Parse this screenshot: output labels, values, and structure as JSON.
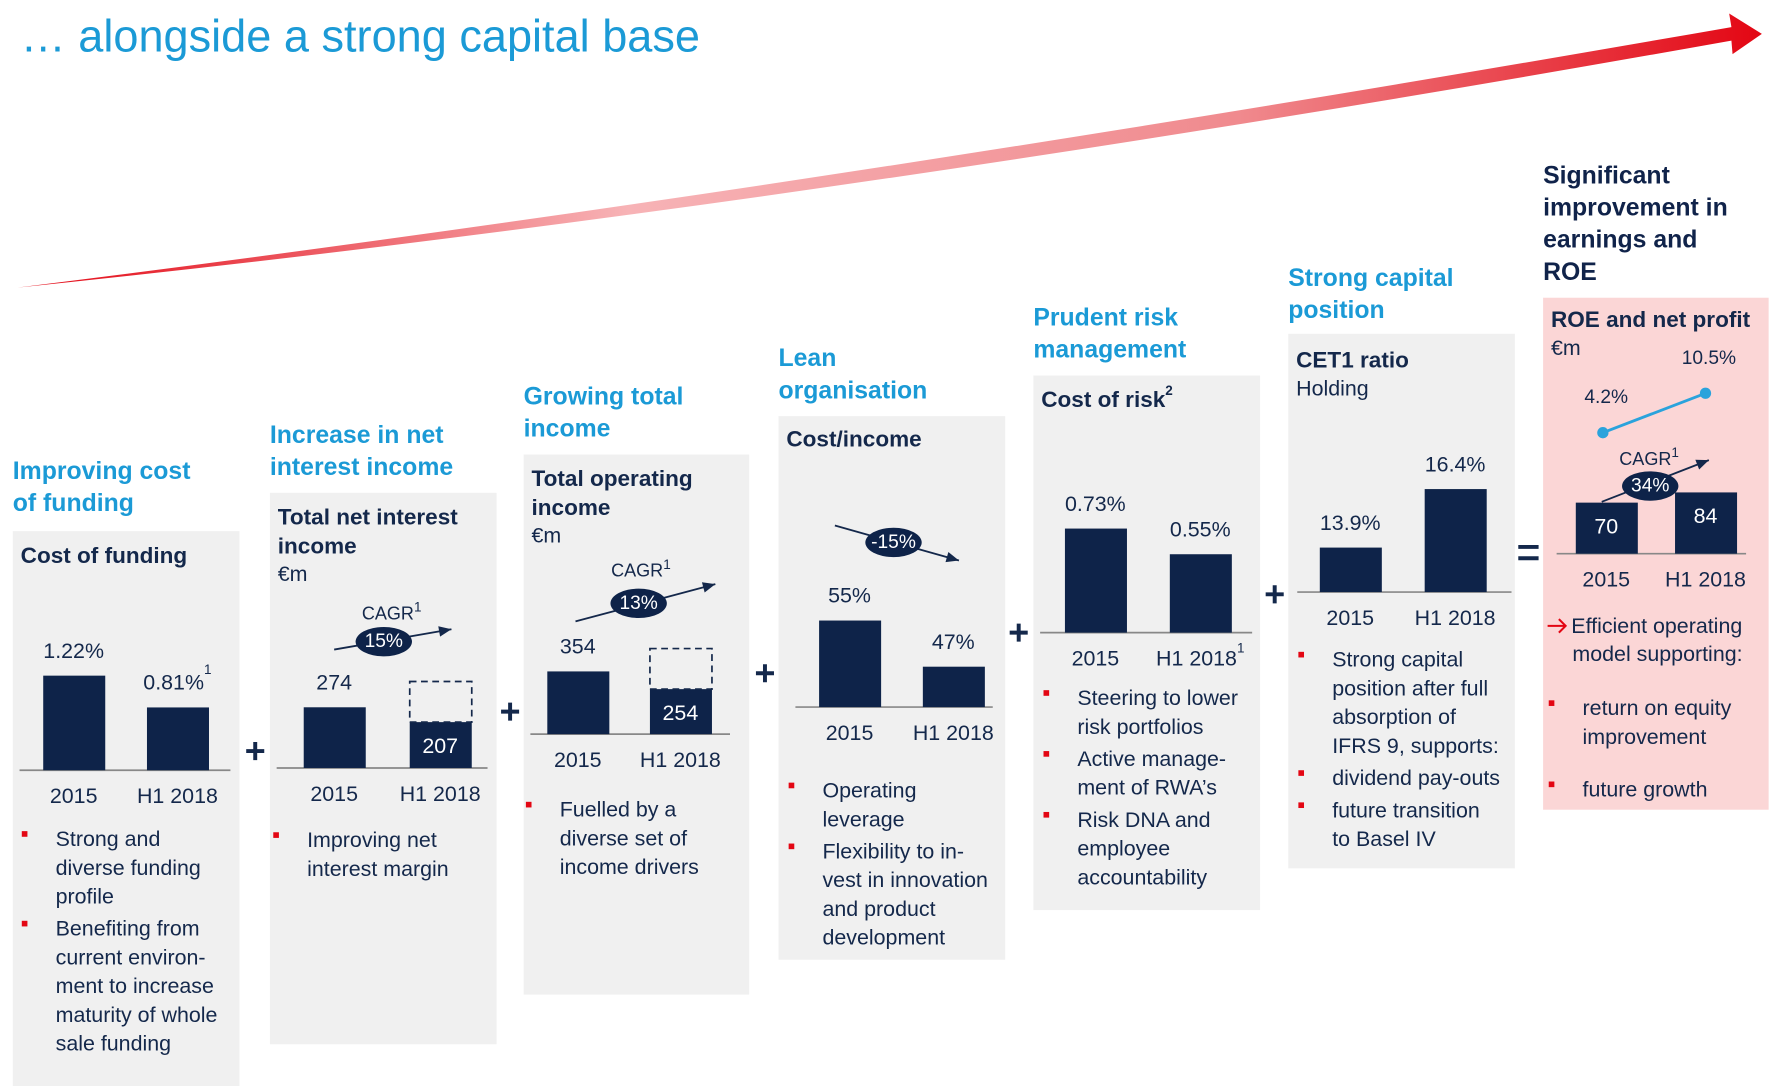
{
  "title": "… alongside a strong capital base",
  "panels": [
    {
      "heading": [
        "Improving cost",
        "of funding"
      ],
      "chart_title": [
        "Cost of funding"
      ],
      "categories": [
        "2015",
        "H1 2018"
      ],
      "values": [
        1.22,
        0.81
      ],
      "value_labels": [
        "1.22%",
        "0.81%"
      ],
      "value_notes": [
        null,
        "1"
      ],
      "ylim": [
        0,
        1.6
      ],
      "bullets": [
        [
          "Strong and",
          "diverse funding",
          "profile"
        ],
        [
          "Benefiting from",
          "current environ-",
          "ment to increase",
          "maturity of whole",
          "sale funding"
        ]
      ]
    },
    {
      "heading": [
        "Increase in net",
        "interest income"
      ],
      "chart_title": [
        "Total net interest",
        "income"
      ],
      "unit": "€m",
      "categories": [
        "2015",
        "H1 2018"
      ],
      "values": [
        274,
        207
      ],
      "ylim": [
        0,
        560
      ],
      "cagr": {
        "label": "CAGR",
        "note": "1",
        "value": 15,
        "value_label": "15%"
      },
      "bullets": [
        [
          "Improving net",
          "interest margin"
        ]
      ]
    },
    {
      "heading": [
        "Growing total",
        "income"
      ],
      "chart_title": [
        "Total operating",
        "income"
      ],
      "unit": "€m",
      "categories": [
        "2015",
        "H1 2018"
      ],
      "values": [
        354,
        254
      ],
      "ylim": [
        0,
        700
      ],
      "cagr": {
        "label": "CAGR",
        "note": "1",
        "value": 13,
        "value_label": "13%"
      },
      "bullets": [
        [
          "Fuelled by a",
          "diverse set of",
          "income drivers"
        ]
      ]
    },
    {
      "heading": [
        "Lean",
        "organisation"
      ],
      "chart_title": [
        "Cost/income"
      ],
      "categories": [
        "2015",
        "H1 2018"
      ],
      "values": [
        55,
        47
      ],
      "value_labels": [
        "55%",
        "47%"
      ],
      "ylim": [
        40,
        61.5
      ],
      "change": {
        "value": -15,
        "value_label": "-15%"
      },
      "bullets": [
        [
          "Operating",
          "leverage"
        ],
        [
          "Flexibility to in-",
          "vest in innovation",
          "and product",
          "development"
        ]
      ]
    },
    {
      "heading": [
        "Prudent risk",
        "management"
      ],
      "chart_title": [
        "Cost of risk"
      ],
      "chart_title_note": "2",
      "categories": [
        "2015",
        "H1 2018"
      ],
      "category_notes": [
        null,
        "1"
      ],
      "values": [
        0.73,
        0.55
      ],
      "value_labels": [
        "0.73%",
        "0.55%"
      ],
      "ylim": [
        0,
        0.87
      ],
      "bullets": [
        [
          "Steering to lower",
          "risk portfolios"
        ],
        [
          "Active manage-",
          "ment of RWA’s"
        ],
        [
          "Risk DNA and",
          "employee",
          "accountability"
        ]
      ]
    },
    {
      "heading": [
        "Strong capital",
        "position"
      ],
      "chart_title": [
        "CET1 ratio"
      ],
      "subtitle": "Holding",
      "categories": [
        "2015",
        "H1 2018"
      ],
      "values": [
        13.9,
        16.4
      ],
      "value_labels": [
        "13.9%",
        "16.4%"
      ],
      "ylim": [
        12,
        17.3
      ],
      "bullets": [
        [
          "Strong capital",
          "position after full",
          "absorption of",
          "IFRS 9, supports:"
        ],
        [
          "dividend pay-outs"
        ],
        [
          "future transition",
          "to Basel IV"
        ]
      ]
    },
    {
      "heading": [
        "Significant",
        "improvement in",
        "earnings and",
        "ROE"
      ],
      "chart_title": [
        "ROE and net profit"
      ],
      "unit": "€m",
      "categories": [
        "2015",
        "H1 2018"
      ],
      "values": [
        70,
        84
      ],
      "ylim": [
        0,
        170
      ],
      "cagr": {
        "label": "CAGR",
        "note": "1",
        "value": 34,
        "value_label": "34%"
      },
      "roe": {
        "values": [
          4.2,
          10.5
        ],
        "value_labels": [
          "4.2%",
          "10.5%"
        ],
        "ylim": [
          0,
          20
        ]
      },
      "conclusion": [
        "Efficient operating",
        "model supporting:"
      ],
      "bullets": [
        [
          "return on equity",
          "improvement"
        ],
        [
          "future growth"
        ]
      ]
    }
  ]
}
